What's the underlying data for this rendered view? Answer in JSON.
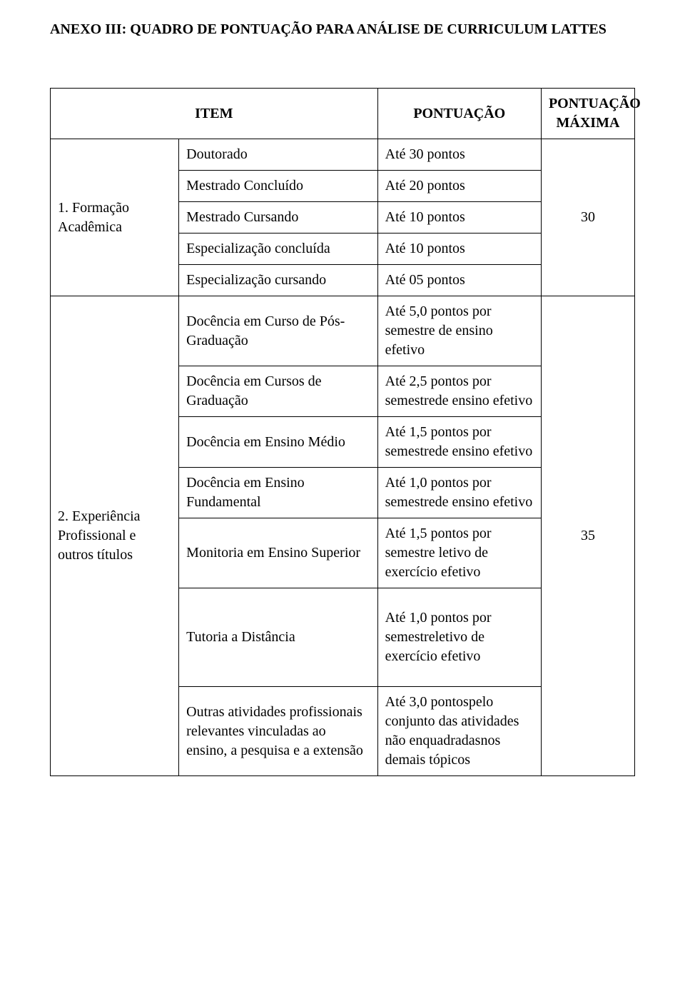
{
  "title": "ANEXO III: QUADRO DE PONTUAÇÃO PARA ANÁLISE DE CURRICULUM LATTES",
  "headers": {
    "item": "ITEM",
    "pontuacao": "PONTUAÇÃO",
    "pontuacao_maxima": "PONTUAÇÃO MÁXIMA"
  },
  "sections": [
    {
      "label": "1. Formação Acadêmica",
      "max_points": "30",
      "rows": [
        {
          "item": "Doutorado",
          "score": "Até 30 pontos"
        },
        {
          "item": "Mestrado Concluído",
          "score": "Até 20 pontos"
        },
        {
          "item": "Mestrado Cursando",
          "score": "Até 10 pontos"
        },
        {
          "item": "Especialização concluída",
          "score": "Até 10 pontos"
        },
        {
          "item": "Especialização cursando",
          "score": "Até 05 pontos"
        }
      ]
    },
    {
      "label": "2. Experiência Profissional e outros títulos",
      "max_points": "35",
      "rows": [
        {
          "item": "Docência em Curso de Pós-Graduação",
          "score": "Até 5,0 pontos por semestre de ensino efetivo"
        },
        {
          "item": "Docência em Cursos de Graduação",
          "score": "Até 2,5 pontos por semestrede ensino efetivo"
        },
        {
          "item": "Docência em Ensino Médio",
          "score": "Até 1,5 pontos por semestrede ensino efetivo"
        },
        {
          "item": "Docência em Ensino Fundamental",
          "score": "Até 1,0 pontos por semestrede ensino efetivo"
        },
        {
          "item": "Monitoria em Ensino Superior",
          "score": "Até 1,5 pontos por semestre letivo de exercício efetivo"
        },
        {
          "item": "Tutoria a Distância",
          "score": "Até 1,0 pontos por semestreletivo de exercício efetivo"
        },
        {
          "item": "Outras atividades profissionais relevantes vinculadas ao ensino, a pesquisa e a extensão",
          "score": "Até 3,0 pontospelo conjunto das atividades não enquadradasnos demais tópicos"
        }
      ]
    }
  ],
  "colors": {
    "background": "#ffffff",
    "border": "#000000",
    "text": "#000000"
  },
  "fonts": {
    "family": "Times New Roman",
    "title_size_pt": 15,
    "body_size_pt": 15
  }
}
